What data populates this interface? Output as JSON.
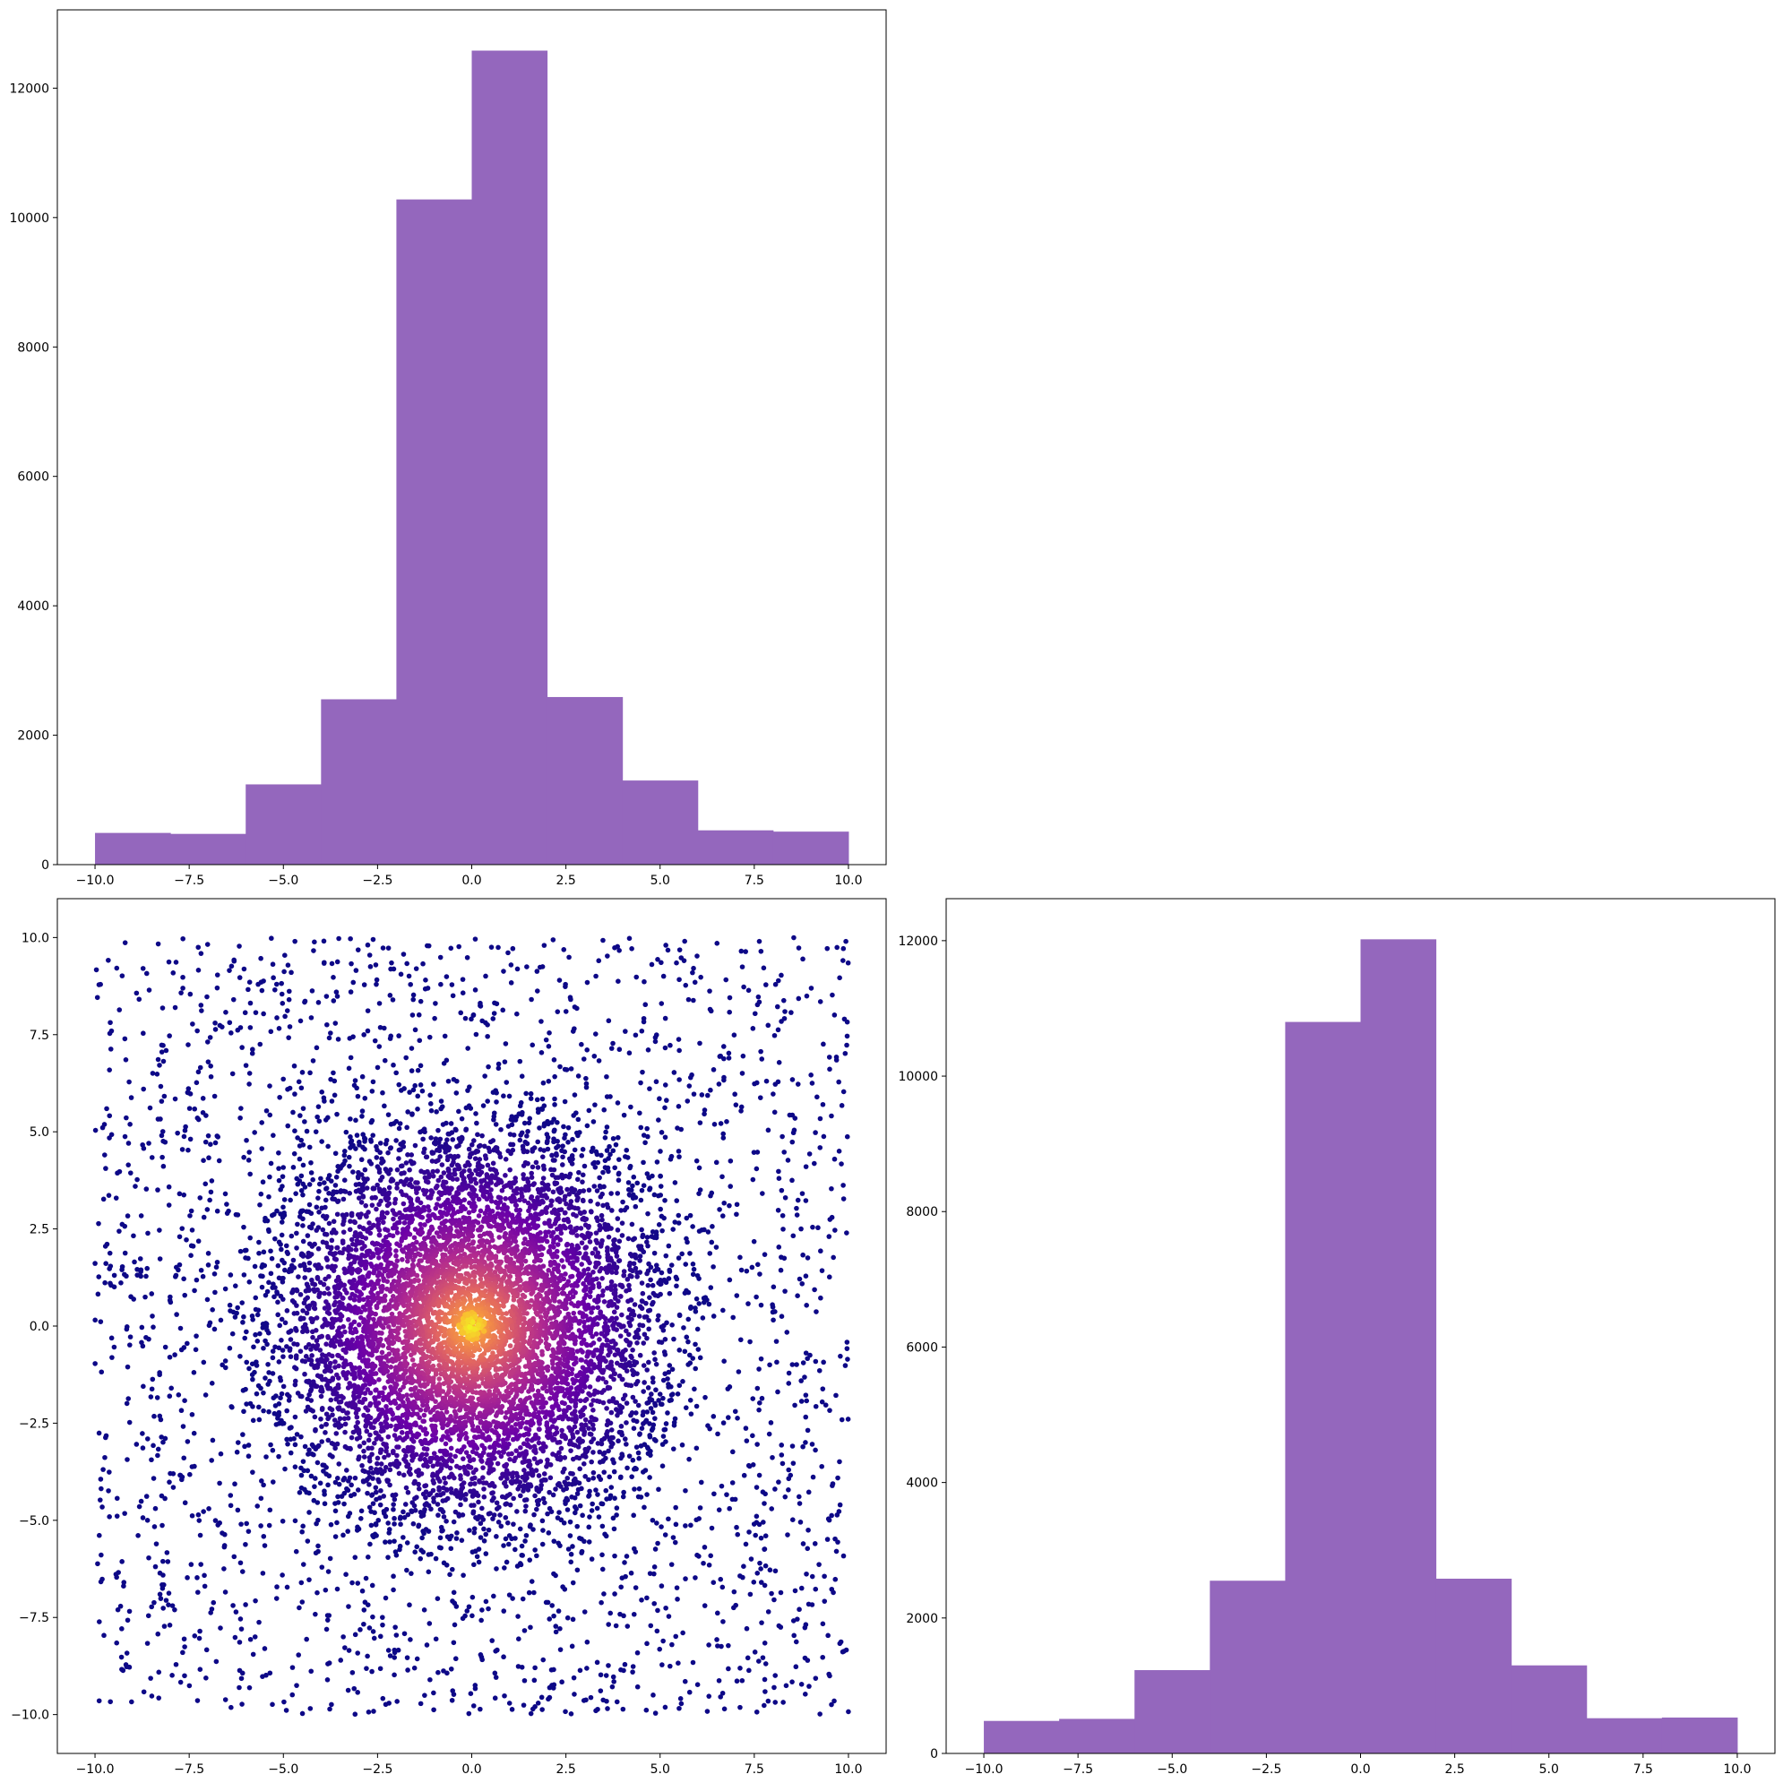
{
  "chart_data": [
    {
      "panel": "top-left",
      "type": "bar",
      "bin_edges": [
        -10,
        -8,
        -6,
        -4,
        -2,
        0,
        2,
        4,
        6,
        8,
        10
      ],
      "values": [
        490,
        475,
        1240,
        2555,
        10280,
        12580,
        2590,
        1300,
        530,
        510
      ],
      "xlim": [
        -11,
        11
      ],
      "ylim": [
        0,
        13210
      ],
      "xticks": [
        -10.0,
        -7.5,
        -5.0,
        -2.5,
        0.0,
        2.5,
        5.0,
        7.5,
        10.0
      ],
      "xtick_labels": [
        "−10.0",
        "−7.5",
        "−5.0",
        "−2.5",
        "0.0",
        "2.5",
        "5.0",
        "7.5",
        "10.0"
      ],
      "yticks": [
        0,
        2000,
        4000,
        6000,
        8000,
        10000,
        12000
      ],
      "ytick_labels": [
        "0",
        "2000",
        "4000",
        "6000",
        "8000",
        "10000",
        "12000"
      ],
      "color": "#9467bd",
      "grid": false
    },
    {
      "panel": "bottom-left",
      "type": "scatter",
      "description_of_distribution": "uniform background on [-10,10]x[-10,10] plus dense gaussian cluster centered at (0,0), colored by density",
      "cluster_center": [
        0,
        0
      ],
      "cluster_spread": 2.5,
      "xlim": [
        -11,
        11
      ],
      "ylim": [
        -11,
        11
      ],
      "xticks": [
        -10.0,
        -7.5,
        -5.0,
        -2.5,
        0.0,
        2.5,
        5.0,
        7.5,
        10.0
      ],
      "xtick_labels": [
        "−10.0",
        "−7.5",
        "−5.0",
        "−2.5",
        "0.0",
        "2.5",
        "5.0",
        "7.5",
        "10.0"
      ],
      "yticks": [
        10.0,
        7.5,
        5.0,
        2.5,
        0.0,
        -2.5,
        -5.0,
        -7.5,
        -10.0
      ],
      "ytick_labels": [
        "10.0",
        "7.5",
        "5.0",
        "2.5",
        "0.0",
        "−2.5",
        "−5.0",
        "−7.5",
        "−10.0"
      ],
      "colormap": [
        "#0d0887",
        "#6a00a8",
        "#b12a90",
        "#e16462",
        "#fca636",
        "#f0f921"
      ],
      "grid": false
    },
    {
      "panel": "bottom-right",
      "type": "bar",
      "bin_edges": [
        -10,
        -8,
        -6,
        -4,
        -2,
        0,
        2,
        4,
        6,
        8,
        10
      ],
      "values": [
        480,
        510,
        1230,
        2550,
        10800,
        12020,
        2580,
        1300,
        520,
        530
      ],
      "xlim": [
        -11,
        11
      ],
      "ylim": [
        0,
        12620
      ],
      "xticks": [
        -10.0,
        -7.5,
        -5.0,
        -2.5,
        0.0,
        2.5,
        5.0,
        7.5,
        10.0
      ],
      "xtick_labels": [
        "−10.0",
        "−7.5",
        "−5.0",
        "−2.5",
        "0.0",
        "2.5",
        "5.0",
        "7.5",
        "10.0"
      ],
      "yticks": [
        0,
        2000,
        4000,
        6000,
        8000,
        10000,
        12000
      ],
      "ytick_labels": [
        "0",
        "2000",
        "4000",
        "6000",
        "8000",
        "10000",
        "12000"
      ],
      "color": "#9467bd",
      "grid": false
    }
  ]
}
